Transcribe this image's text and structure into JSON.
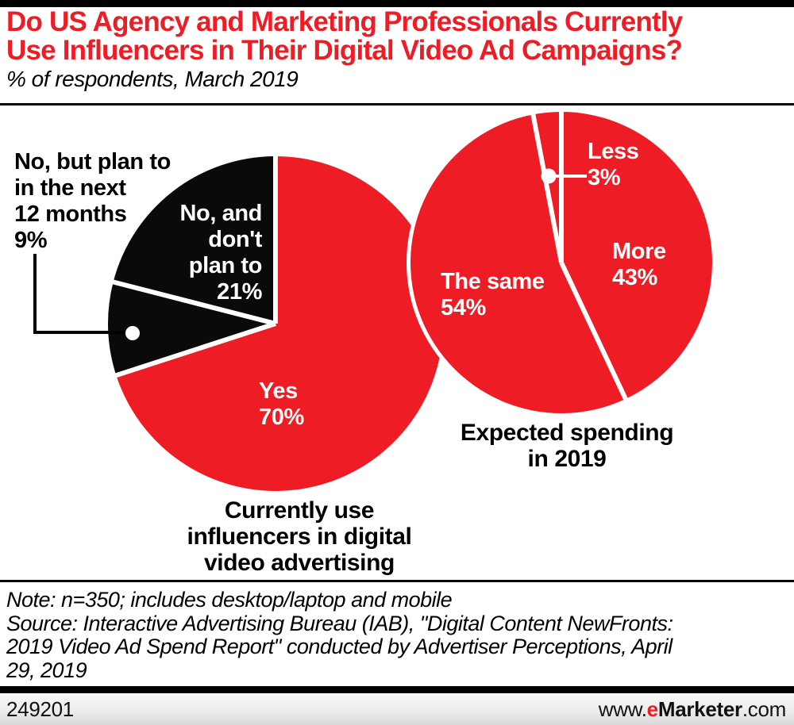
{
  "header": {
    "title": "Do US Agency and Marketing Professionals Currently\nUse Influencers in Their Digital Video Ad Campaigns?",
    "subtitle": "% of respondents, March 2019"
  },
  "colors": {
    "brand_red": "#ee1c25",
    "slice_black": "#0a0a0a",
    "divider_white": "#ffffff",
    "footer_gray": "#ededed"
  },
  "chart_data": [
    {
      "type": "pie",
      "title": "Currently use influencers in digital video advertising",
      "caption_lines": "Currently use\ninfluencers in digital\nvideo advertising",
      "units": "% of respondents",
      "start_angle_deg": 0,
      "direction": "clockwise",
      "slices": [
        {
          "label": "Yes",
          "value": 70,
          "color": "#ee1c25",
          "label_lines": "Yes\n70%"
        },
        {
          "label": "No, but plan to in the next 12 months",
          "value": 9,
          "color": "#0a0a0a",
          "label_lines": "No, but plan to\nin the next\n12 months\n9%"
        },
        {
          "label": "No, and don't plan to",
          "value": 21,
          "color": "#0a0a0a",
          "label_lines": "No, and\ndon't\nplan to\n21%"
        }
      ]
    },
    {
      "type": "pie",
      "title": "Expected spending in 2019",
      "caption_lines": "Expected spending\nin 2019",
      "units": "% of respondents",
      "start_angle_deg": 0,
      "direction": "clockwise",
      "slices": [
        {
          "label": "More",
          "value": 43,
          "color": "#ee1c25",
          "label_lines": "More\n43%"
        },
        {
          "label": "The same",
          "value": 54,
          "color": "#ee1c25",
          "label_lines": "The same\n54%"
        },
        {
          "label": "Less",
          "value": 3,
          "color": "#ee1c25",
          "label_lines": "Less\n3%"
        }
      ]
    }
  ],
  "note": "Note: n=350; includes desktop/laptop and mobile",
  "source": "Source: Interactive Advertising Bureau (IAB), \"Digital Content NewFronts:\n2019 Video Ad Spend Report\" conducted by Advertiser Perceptions, April\n29, 2019",
  "footer": {
    "chart_id": "249201",
    "site": {
      "prefix": "www.",
      "brand_e": "e",
      "brand_rest": "Marketer",
      "suffix": ".com"
    }
  }
}
